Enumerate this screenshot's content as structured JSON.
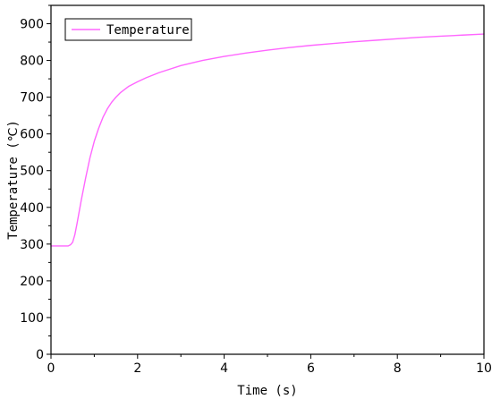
{
  "chart_data": {
    "type": "line",
    "title": "",
    "xlabel": "Time (s)",
    "ylabel": "Temperature (℃)",
    "xlim": [
      0,
      10
    ],
    "ylim": [
      0,
      950
    ],
    "x_ticks": [
      0,
      2,
      4,
      6,
      8,
      10
    ],
    "y_ticks": [
      0,
      100,
      200,
      300,
      400,
      500,
      600,
      700,
      800,
      900
    ],
    "grid": false,
    "legend": "top-left",
    "series": [
      {
        "name": "Temperature",
        "color": "#ff66ff",
        "x": [
          0,
          0.2,
          0.4,
          0.45,
          0.5,
          0.55,
          0.6,
          0.7,
          0.8,
          0.9,
          1.0,
          1.1,
          1.2,
          1.3,
          1.4,
          1.5,
          1.6,
          1.8,
          2.0,
          2.2,
          2.5,
          3.0,
          3.5,
          4.0,
          4.5,
          5.0,
          5.5,
          6.0,
          6.5,
          7.0,
          7.5,
          8.0,
          8.5,
          9.0,
          9.5,
          10.0
        ],
        "y": [
          295,
          295,
          295,
          298,
          305,
          325,
          355,
          420,
          480,
          535,
          580,
          615,
          645,
          668,
          686,
          700,
          712,
          730,
          742,
          753,
          767,
          786,
          800,
          811,
          820,
          828,
          835,
          841,
          846,
          851,
          855,
          859,
          863,
          866,
          869,
          872
        ]
      }
    ]
  }
}
